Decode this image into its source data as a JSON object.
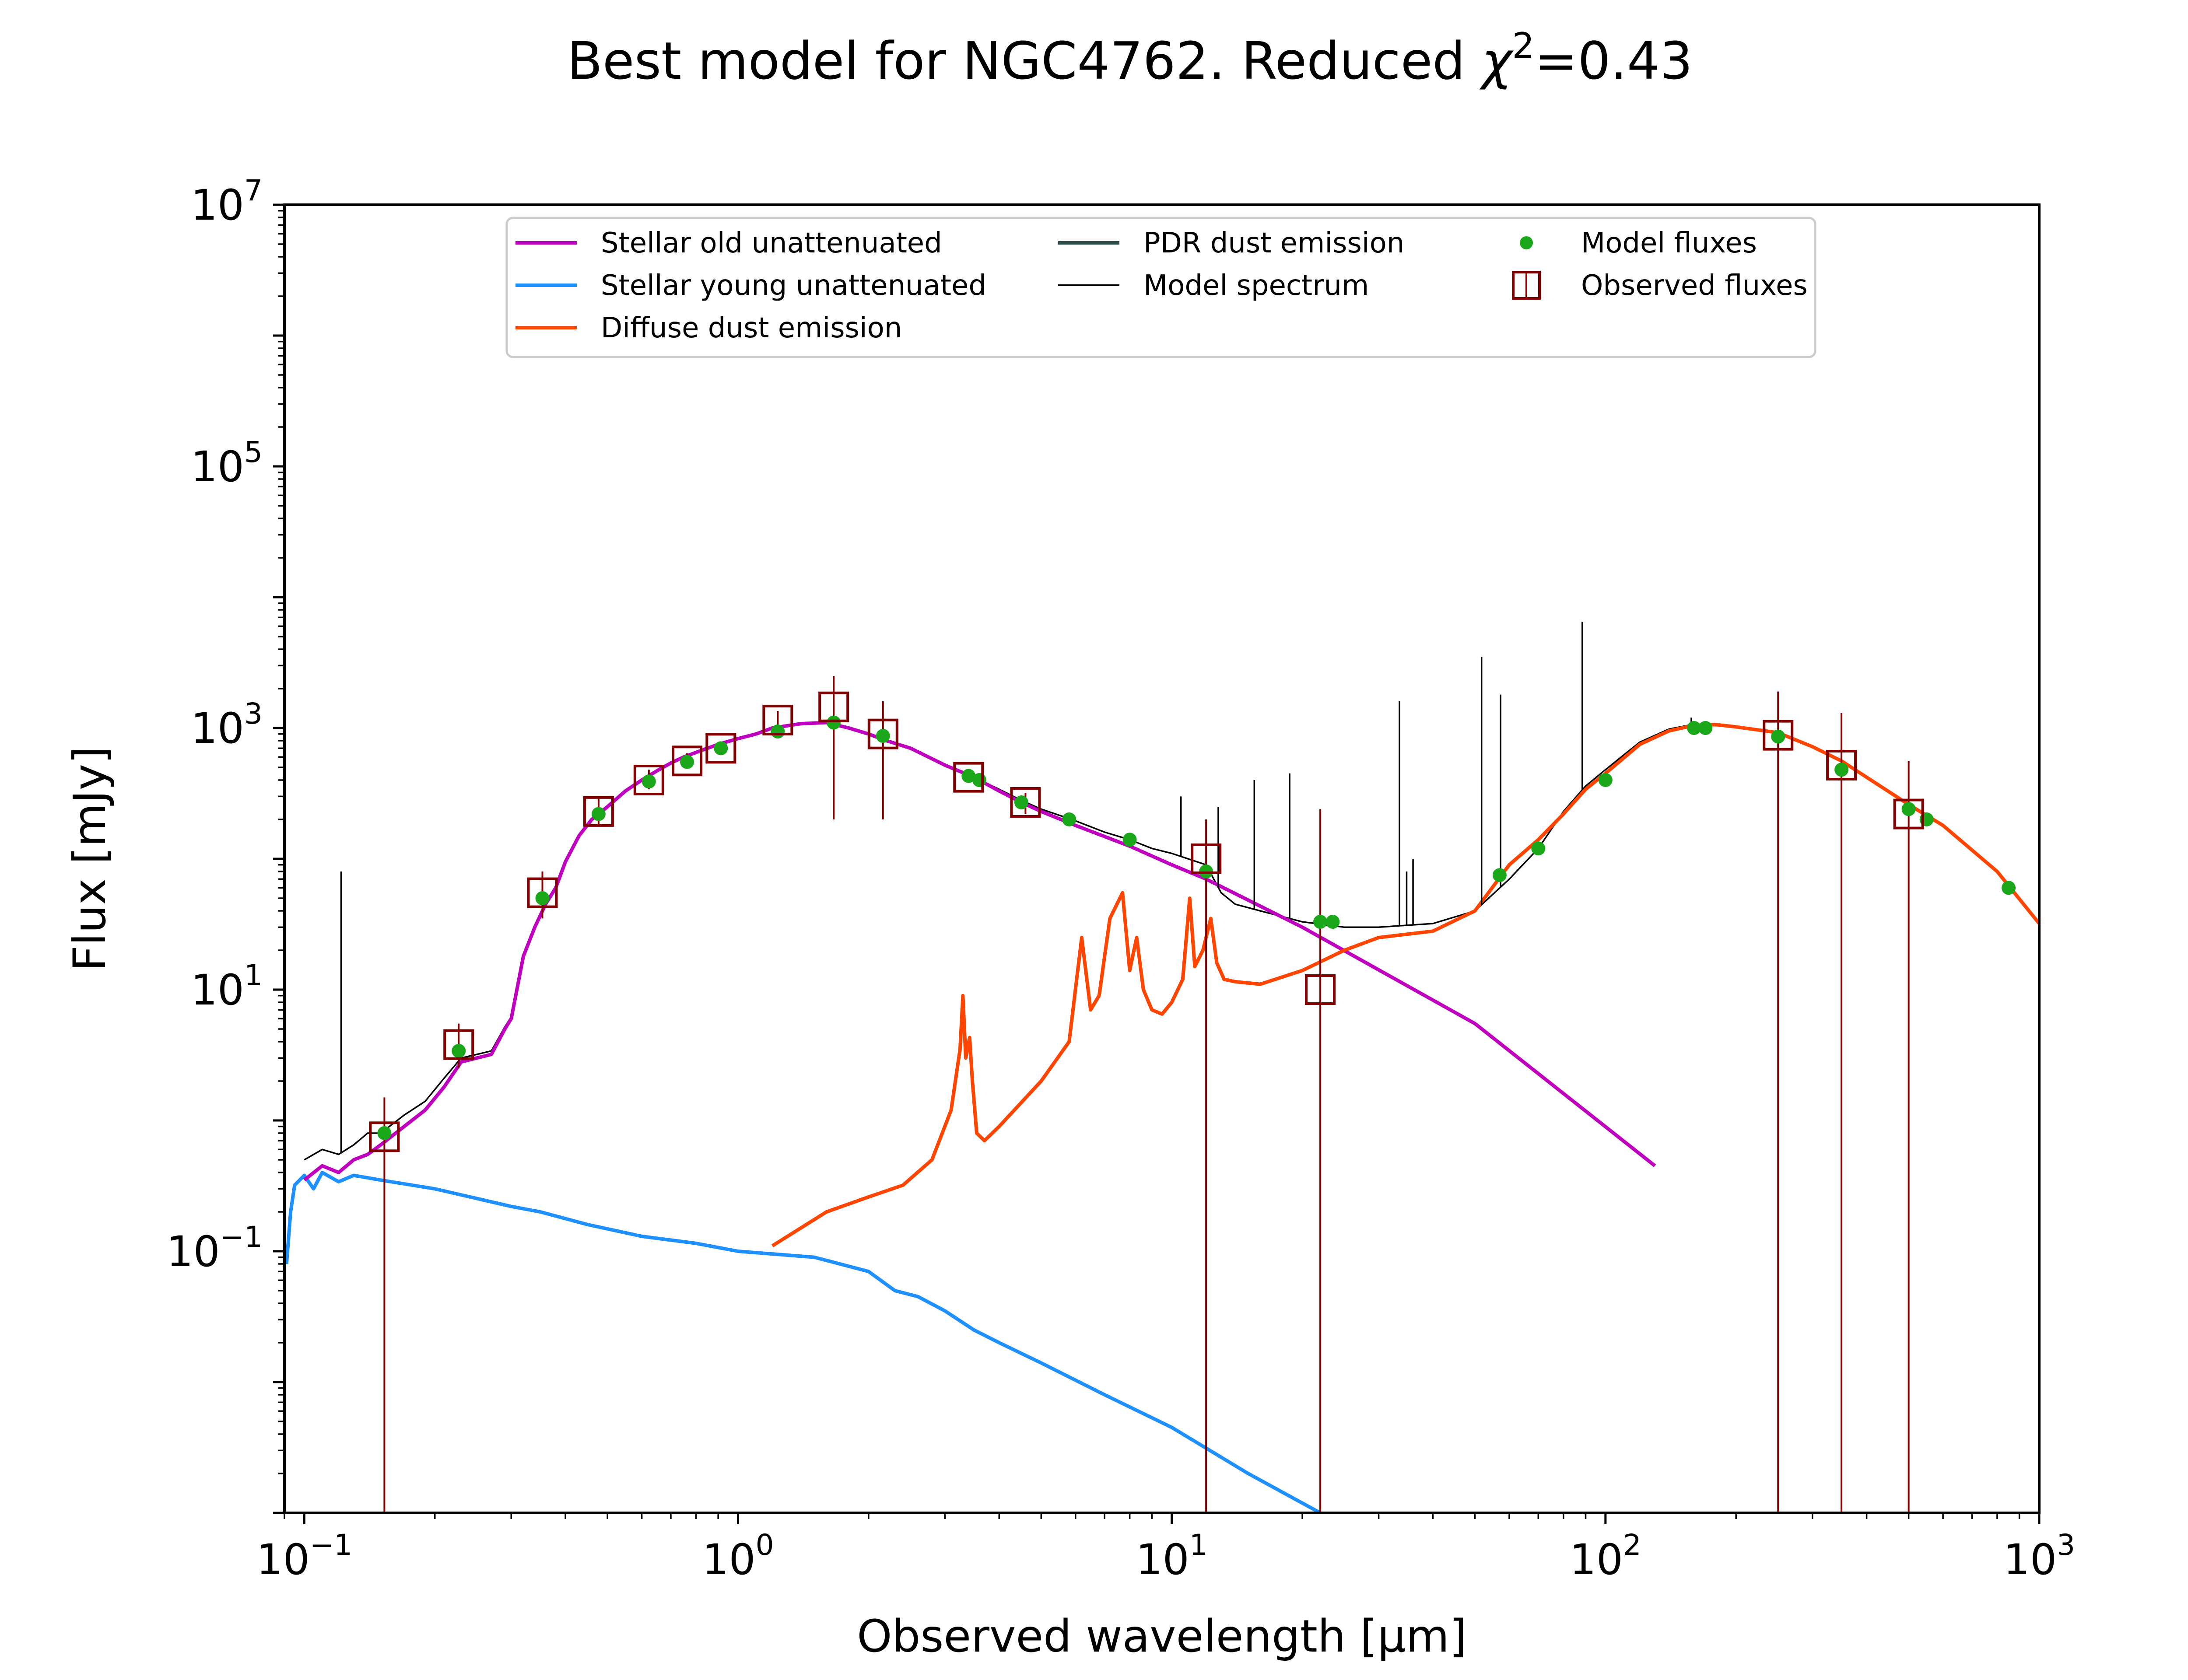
{
  "chart_data": {
    "type": "line",
    "title": "Best model for NGC4762. Reduced χ²=0.43",
    "title_parts": {
      "main": "Best model for NGC4762. Reduced ",
      "chi": "χ",
      "sup": "2",
      "rest": "=0.43"
    },
    "xlabel": "Observed wavelength [μm]",
    "ylabel": "Flux [mJy]",
    "x_scale": "log",
    "y_scale": "log",
    "xlim": [
      0.09,
      1000
    ],
    "ylim": [
      0.001,
      10000000
    ],
    "x_ticks": [
      {
        "value": 0.1,
        "base": "10",
        "exp": "−1"
      },
      {
        "value": 1,
        "base": "10",
        "exp": "0"
      },
      {
        "value": 10,
        "base": "10",
        "exp": "1"
      },
      {
        "value": 100,
        "base": "10",
        "exp": "2"
      },
      {
        "value": 1000,
        "base": "10",
        "exp": "3"
      }
    ],
    "y_ticks": [
      {
        "value": 0.1,
        "base": "10",
        "exp": "−1"
      },
      {
        "value": 10,
        "base": "10",
        "exp": "1"
      },
      {
        "value": 1000,
        "base": "10",
        "exp": "3"
      },
      {
        "value": 100000,
        "base": "10",
        "exp": "5"
      },
      {
        "value": 10000000,
        "base": "10",
        "exp": "7"
      }
    ],
    "grid": false,
    "legend_position": "top-center",
    "legend": [
      {
        "label": "Stellar old unattenuated",
        "kind": "line",
        "color": "#bf00bf"
      },
      {
        "label": "Stellar young unattenuated",
        "kind": "line",
        "color": "#1e90ff"
      },
      {
        "label": "Diffuse dust emission",
        "kind": "line",
        "color": "#ff4500"
      },
      {
        "label": "PDR dust emission",
        "kind": "line",
        "color": "#2f4f4f"
      },
      {
        "label": "Model spectrum",
        "kind": "thinline",
        "color": "#000000"
      },
      {
        "label": "Model fluxes",
        "kind": "dot",
        "color": "#1aa81a"
      },
      {
        "label": "Observed fluxes",
        "kind": "square",
        "color": "#800000"
      }
    ],
    "series": [
      {
        "name": "Stellar old unattenuated",
        "color": "#bf00bf",
        "x": [
          0.1,
          0.11,
          0.12,
          0.13,
          0.14,
          0.15,
          0.17,
          0.19,
          0.21,
          0.23,
          0.25,
          0.27,
          0.29,
          0.3,
          0.32,
          0.34,
          0.36,
          0.38,
          0.4,
          0.43,
          0.46,
          0.5,
          0.55,
          0.6,
          0.65,
          0.7,
          0.75,
          0.8,
          0.9,
          1.0,
          1.1,
          1.2,
          1.4,
          1.6,
          1.8,
          2.0,
          2.2,
          2.5,
          3.0,
          3.5,
          4.0,
          4.5,
          5.0,
          6.0,
          8.0,
          10,
          12,
          20,
          50,
          130
        ],
        "y": [
          0.35,
          0.45,
          0.4,
          0.5,
          0.55,
          0.65,
          0.9,
          1.2,
          1.8,
          2.8,
          3.0,
          3.2,
          5.0,
          6.0,
          18,
          30,
          45,
          60,
          95,
          150,
          200,
          250,
          330,
          400,
          470,
          540,
          600,
          650,
          750,
          830,
          900,
          1000,
          1080,
          1100,
          1000,
          900,
          800,
          700,
          520,
          420,
          330,
          270,
          230,
          180,
          125,
          90,
          70,
          30,
          5.5,
          0.45
        ]
      },
      {
        "name": "Stellar young unattenuated",
        "color": "#1e90ff",
        "x": [
          0.091,
          0.093,
          0.095,
          0.1,
          0.105,
          0.11,
          0.12,
          0.13,
          0.15,
          0.2,
          0.3,
          0.35,
          0.45,
          0.6,
          0.8,
          1.0,
          1.5,
          2.0,
          2.3,
          2.6,
          3.0,
          3.5,
          4.0,
          4.6,
          5.0,
          7.0,
          10,
          15,
          22
        ],
        "y": [
          0.08,
          0.2,
          0.32,
          0.38,
          0.3,
          0.4,
          0.34,
          0.38,
          0.35,
          0.3,
          0.22,
          0.2,
          0.16,
          0.13,
          0.115,
          0.1,
          0.09,
          0.07,
          0.05,
          0.045,
          0.035,
          0.025,
          0.02,
          0.016,
          0.014,
          0.008,
          0.0045,
          0.002,
          0.001
        ]
      },
      {
        "name": "Diffuse dust emission",
        "color": "#ff4500",
        "x": [
          1.2,
          1.6,
          2.0,
          2.4,
          2.8,
          3.1,
          3.25,
          3.3,
          3.35,
          3.42,
          3.47,
          3.55,
          3.7,
          4.0,
          5.0,
          5.8,
          6.2,
          6.5,
          6.8,
          7.2,
          7.7,
          8.0,
          8.3,
          8.6,
          9.0,
          9.5,
          10.0,
          10.6,
          11.0,
          11.3,
          11.8,
          12.3,
          12.7,
          13.2,
          14,
          16,
          20,
          25,
          30,
          40,
          50,
          60,
          70,
          80,
          90,
          100,
          120,
          140,
          160,
          180,
          200,
          250,
          300,
          350,
          400,
          500,
          600,
          800,
          1000
        ],
        "y": [
          0.11,
          0.2,
          0.26,
          0.32,
          0.5,
          1.2,
          3.5,
          9.0,
          3.0,
          4.3,
          2.0,
          0.8,
          0.7,
          0.9,
          2.0,
          4.0,
          25,
          7.0,
          9.0,
          35,
          55,
          14,
          25,
          10,
          7.0,
          6.5,
          8.0,
          12,
          50,
          15,
          20,
          35,
          16,
          12,
          11.5,
          11,
          14,
          20,
          25,
          28,
          40,
          90,
          140,
          220,
          340,
          450,
          750,
          950,
          1050,
          1060,
          1020,
          920,
          720,
          560,
          420,
          260,
          180,
          80,
          32
        ]
      },
      {
        "name": "Model spectrum",
        "color": "#000000",
        "x": [
          0.1,
          0.11,
          0.12,
          0.13,
          0.14,
          0.15,
          0.17,
          0.19,
          0.21,
          0.23,
          0.25,
          0.27,
          0.29,
          0.3,
          0.32,
          0.34,
          0.36,
          0.38,
          0.4,
          0.43,
          0.46,
          0.5,
          0.55,
          0.6,
          0.65,
          0.7,
          0.75,
          0.8,
          0.9,
          1.0,
          1.1,
          1.2,
          1.4,
          1.6,
          1.8,
          2.0,
          2.2,
          2.5,
          3.0,
          3.5,
          4.0,
          4.5,
          5.0,
          6.0,
          7.0,
          8.0,
          9.0,
          10,
          12,
          12.5,
          13,
          14,
          16,
          20,
          25,
          30,
          40,
          50,
          60,
          70,
          80,
          90,
          100,
          120,
          140,
          160
        ],
        "y": [
          0.5,
          0.6,
          0.55,
          0.65,
          0.8,
          0.8,
          1.1,
          1.4,
          2.1,
          3.0,
          3.2,
          3.4,
          5.2,
          6.2,
          18,
          30,
          45,
          60,
          95,
          150,
          200,
          250,
          330,
          400,
          470,
          540,
          600,
          650,
          750,
          830,
          900,
          1000,
          1080,
          1100,
          1000,
          900,
          800,
          700,
          520,
          420,
          340,
          280,
          240,
          195,
          160,
          140,
          120,
          110,
          90,
          70,
          55,
          45,
          40,
          33,
          30,
          30,
          32,
          40,
          70,
          120,
          230,
          360,
          480,
          780,
          980,
          1070
        ]
      }
    ],
    "emission_lines": [
      {
        "x": 0.1216,
        "y_top": 80
      },
      {
        "x": 10.5,
        "y_top": 300
      },
      {
        "x": 12.8,
        "y_top": 250
      },
      {
        "x": 15.5,
        "y_top": 400
      },
      {
        "x": 18.7,
        "y_top": 450
      },
      {
        "x": 33.5,
        "y_top": 1600
      },
      {
        "x": 34.8,
        "y_top": 80
      },
      {
        "x": 36.0,
        "y_top": 100
      },
      {
        "x": 51.8,
        "y_top": 3500
      },
      {
        "x": 57.3,
        "y_top": 1800
      },
      {
        "x": 88.4,
        "y_top": 6500
      },
      {
        "x": 157.7,
        "y_top": 1200
      }
    ],
    "model_fluxes": {
      "x": [
        0.153,
        0.227,
        0.354,
        0.477,
        0.623,
        0.763,
        0.913,
        1.235,
        1.662,
        2.159,
        3.4,
        3.6,
        4.5,
        5.8,
        8.0,
        12.0,
        22.0,
        23.5,
        57,
        70,
        100,
        160,
        170,
        250,
        350,
        500,
        550,
        850
      ],
      "y": [
        0.8,
        3.4,
        50,
        220,
        390,
        550,
        700,
        940,
        1100,
        870,
        430,
        400,
        270,
        200,
        140,
        80,
        33,
        33,
        75,
        120,
        400,
        1000,
        1000,
        860,
        480,
        240,
        200,
        60
      ]
    },
    "observed_fluxes": {
      "x": [
        0.153,
        0.227,
        0.354,
        0.477,
        0.623,
        0.763,
        0.913,
        1.235,
        1.662,
        2.159,
        3.4,
        4.6,
        12.0,
        22.0,
        250,
        350,
        500
      ],
      "y": [
        0.75,
        3.8,
        55,
        230,
        400,
        560,
        700,
        1150,
        1450,
        900,
        420,
        270,
        100,
        10,
        880,
        520,
        220
      ],
      "err_low": [
        0.001,
        2.5,
        35,
        180,
        340,
        500,
        640,
        950,
        200,
        200,
        380,
        220,
        0.001,
        0.001,
        0.001,
        0.001,
        0.001
      ],
      "err_high": [
        1.5,
        5.5,
        80,
        300,
        480,
        640,
        790,
        1350,
        2500,
        1600,
        470,
        320,
        200,
        240,
        1900,
        1300,
        560
      ]
    }
  }
}
